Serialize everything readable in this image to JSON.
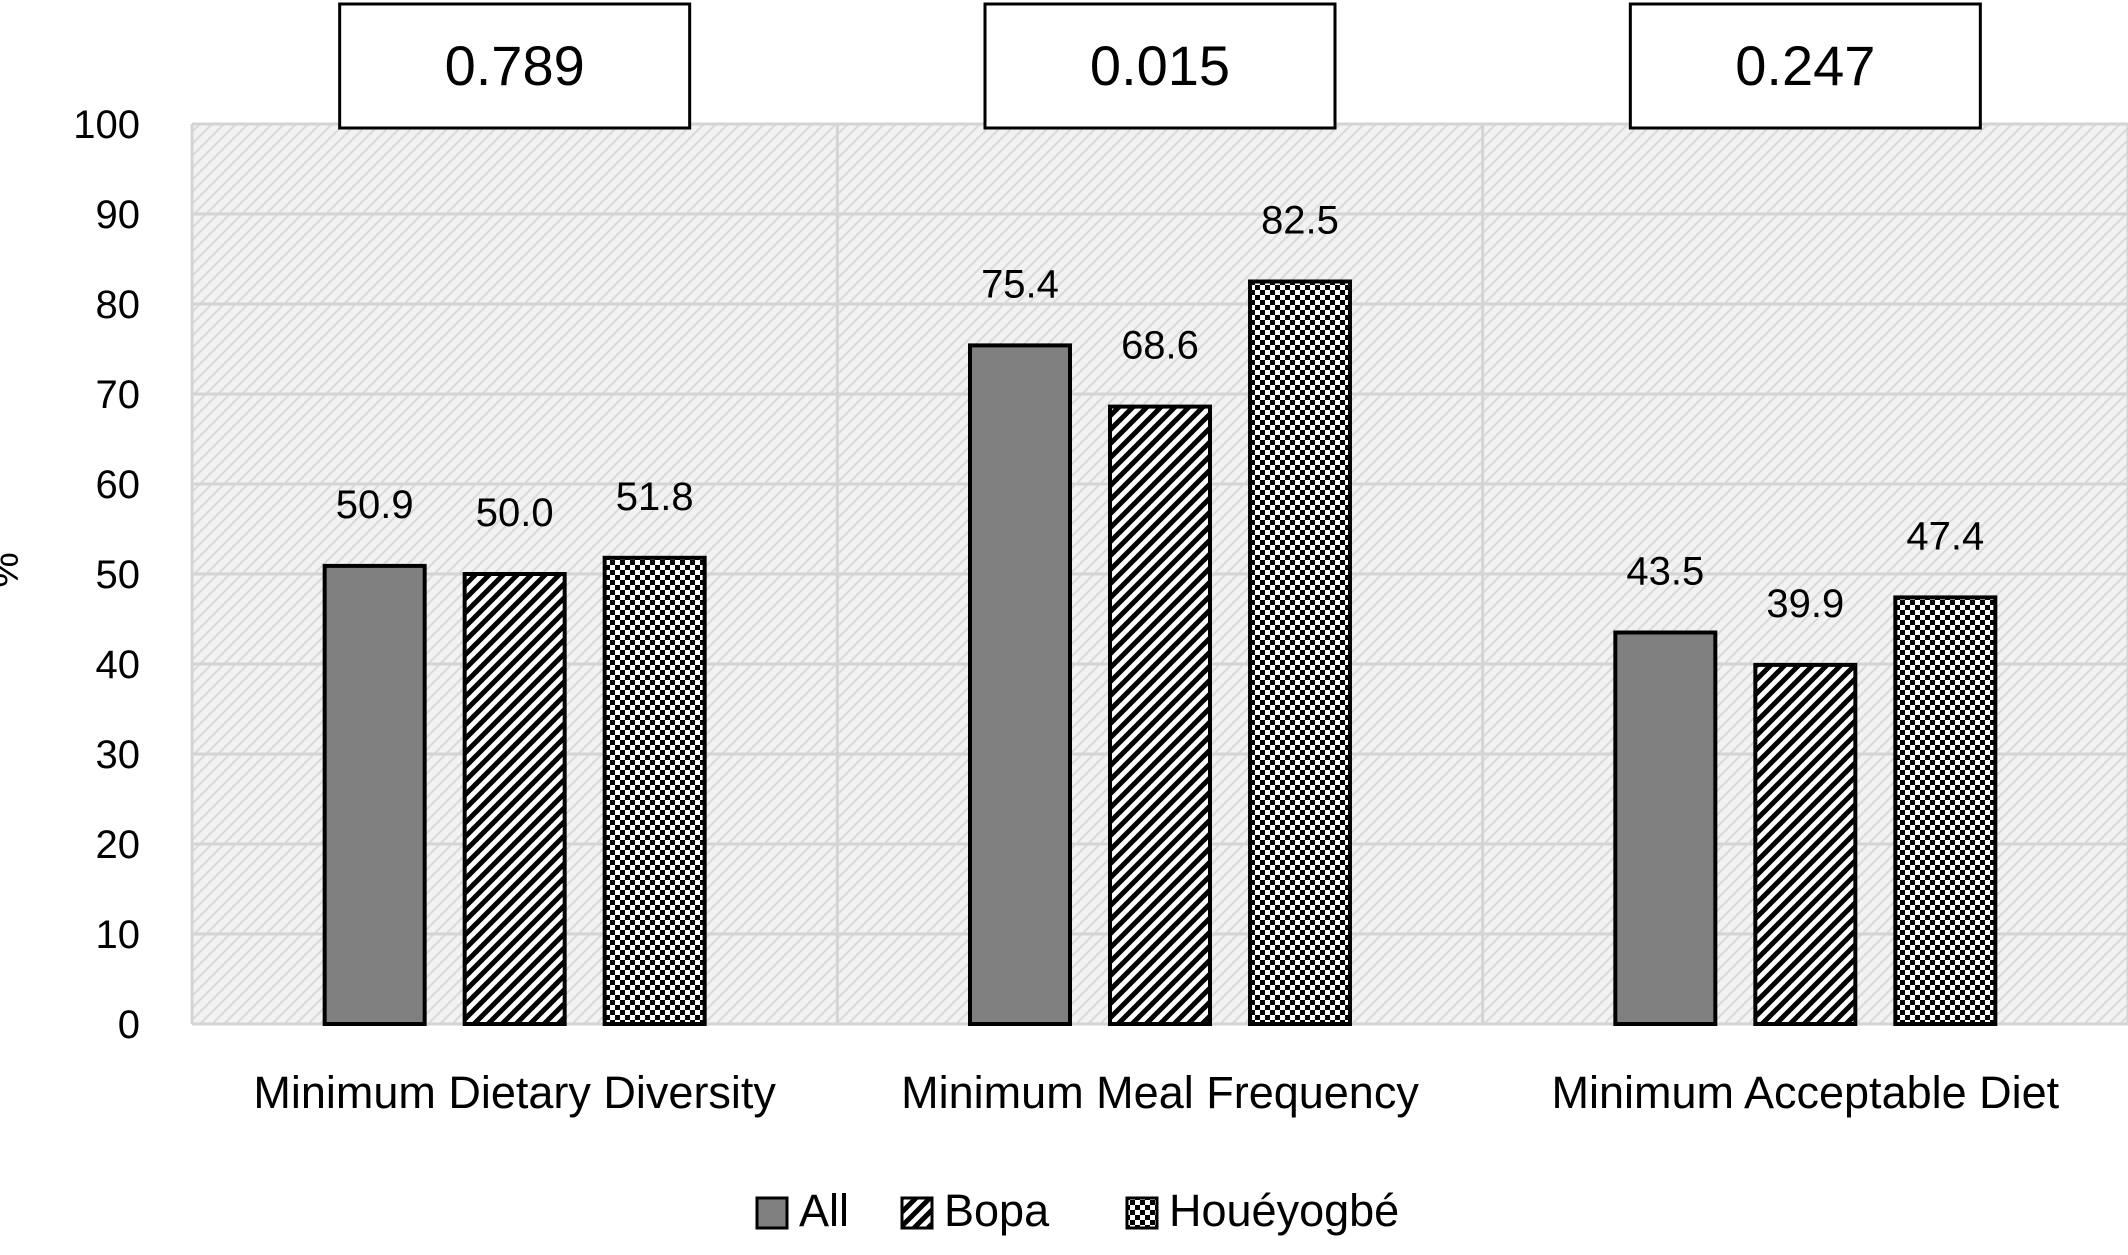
{
  "chart_data": {
    "type": "bar",
    "title": "",
    "xlabel": "",
    "ylabel": "%",
    "ylim": [
      0,
      100
    ],
    "yticks": [
      0,
      10,
      20,
      30,
      40,
      50,
      60,
      70,
      80,
      90,
      100
    ],
    "grid": true,
    "legend_position": "bottom",
    "categories": [
      "Minimum Dietary Diversity",
      "Minimum Meal Frequency",
      "Minimum Acceptable Diet"
    ],
    "series": [
      {
        "name": "All",
        "values": [
          50.9,
          75.4,
          43.5
        ],
        "pattern": "solid",
        "color": "#808080"
      },
      {
        "name": "Bopa",
        "values": [
          50.0,
          68.6,
          39.9
        ],
        "pattern": "diagonal-stripes",
        "color": "#000000"
      },
      {
        "name": "Houéyogbé",
        "values": [
          51.8,
          82.5,
          47.4
        ],
        "pattern": "checker",
        "color": "#000000"
      }
    ],
    "data_labels": [
      [
        "50.9",
        "50.0",
        "51.8"
      ],
      [
        "75.4",
        "68.6",
        "82.5"
      ],
      [
        "43.5",
        "39.9",
        "47.4"
      ]
    ],
    "annotations": [
      "0.789",
      "0.015",
      "0.247"
    ]
  },
  "colors": {
    "plot_background": "#f2f2f2",
    "plot_hatch": "#d9d9d9",
    "gridline": "#d4d4d4",
    "bar_outline": "#000000"
  }
}
